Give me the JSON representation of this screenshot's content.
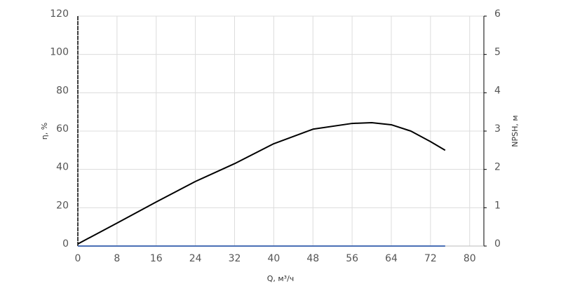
{
  "chart_data": {
    "type": "line",
    "x_label": "Q, м³/ч",
    "y_label": "η, %",
    "y2_label": "NPSH, м",
    "xlim": [
      0,
      82.9
    ],
    "xticks": [
      0,
      8,
      16,
      24,
      32,
      40,
      48,
      56,
      64,
      72,
      80
    ],
    "ylim": [
      0,
      120
    ],
    "yticks": [
      0,
      20,
      40,
      60,
      80,
      100,
      120
    ],
    "y2lim": [
      0,
      6
    ],
    "y2ticks": [
      0,
      1,
      2,
      3,
      4,
      5,
      6
    ],
    "grid": true,
    "series": [
      {
        "color": "#000000",
        "x": [
          0,
          8,
          16,
          24,
          32,
          40,
          48,
          56,
          60,
          64,
          68,
          72,
          75
        ],
        "values": [
          1.1,
          12,
          23,
          33.7,
          43,
          53.4,
          61,
          64,
          64.4,
          63.3,
          60,
          54.5,
          50
        ]
      },
      {
        "color": "#4a6fb5",
        "axis": "y2",
        "x": [
          0,
          75
        ],
        "values": [
          0,
          0
        ]
      }
    ]
  }
}
